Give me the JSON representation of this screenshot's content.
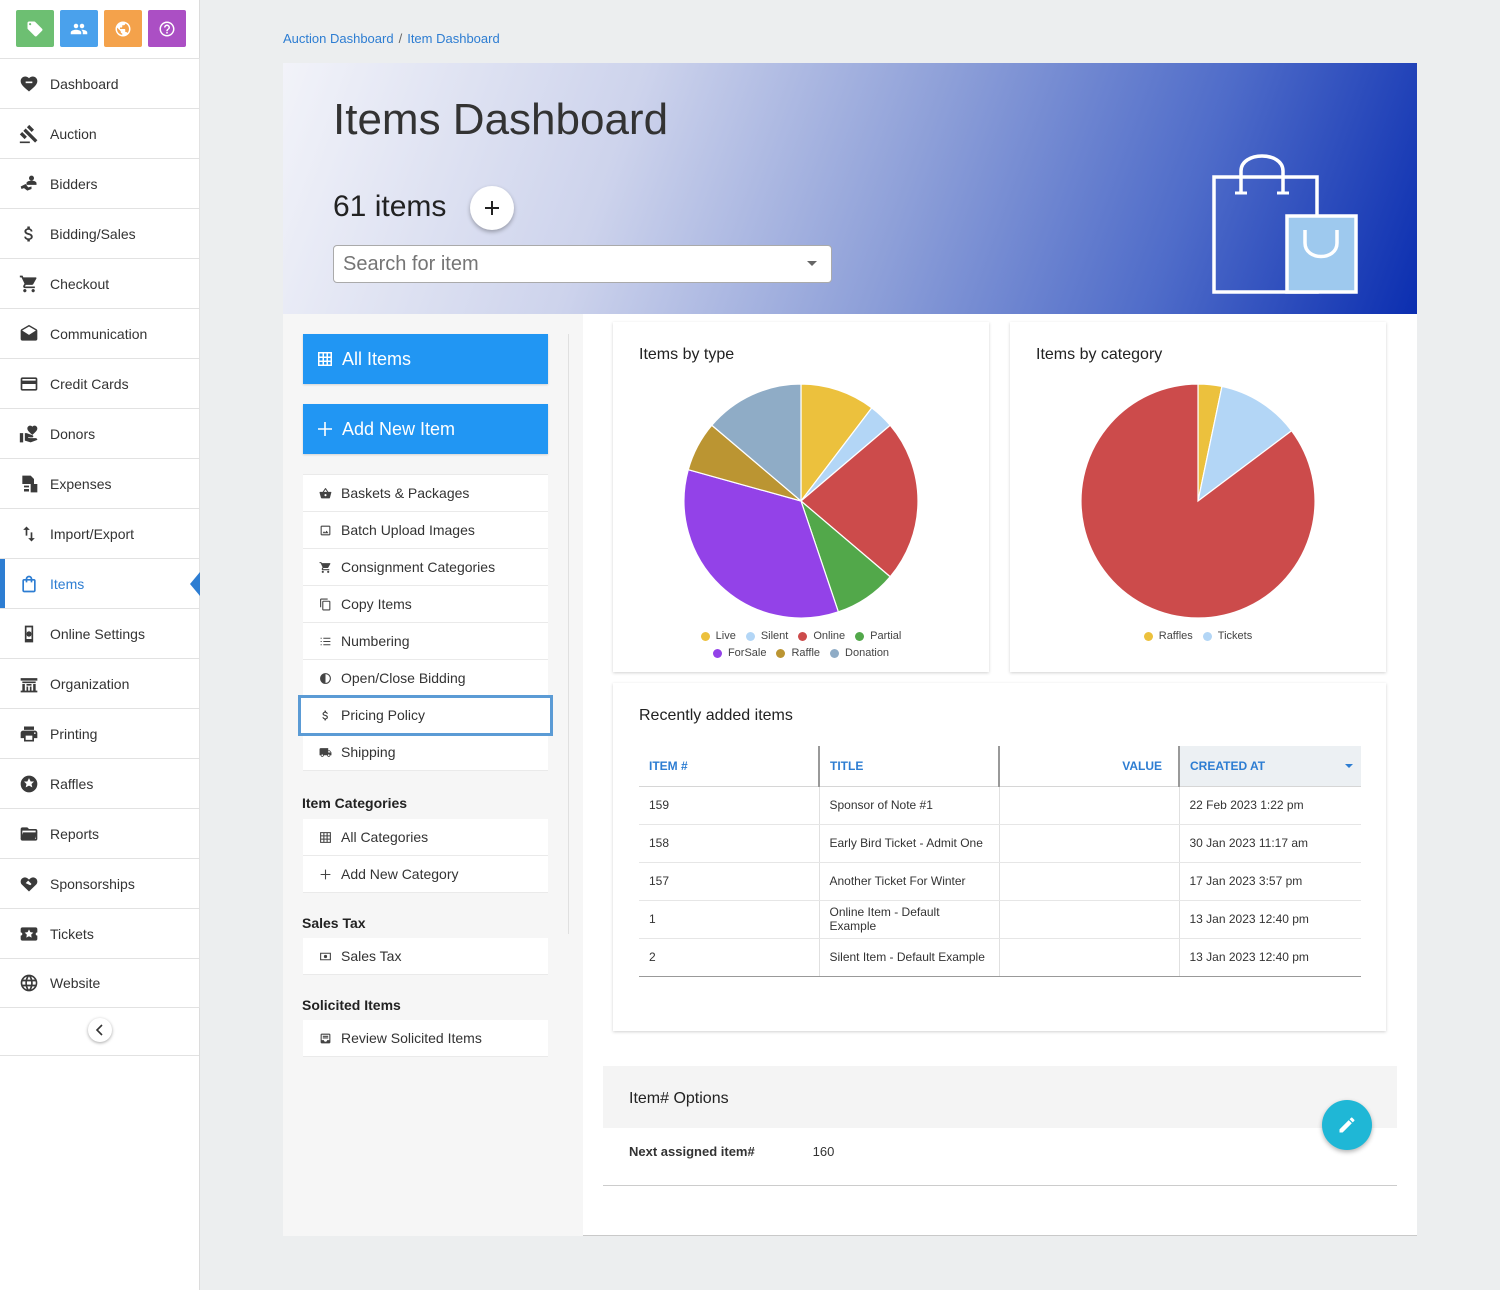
{
  "sidebar": {
    "top_icons": [
      {
        "icon": "tag-icon",
        "color": "#6dbf72"
      },
      {
        "icon": "people-icon",
        "color": "#4aa1ec"
      },
      {
        "icon": "globe-icon",
        "color": "#f4a24b"
      },
      {
        "icon": "help-icon",
        "color": "#ab4fc4"
      }
    ],
    "items": [
      {
        "label": "Dashboard",
        "icon": "dashboard-icon"
      },
      {
        "label": "Auction",
        "icon": "gavel-icon"
      },
      {
        "label": "Bidders",
        "icon": "bidders-icon"
      },
      {
        "label": "Bidding/Sales",
        "icon": "dollar-icon"
      },
      {
        "label": "Checkout",
        "icon": "cart-icon"
      },
      {
        "label": "Communication",
        "icon": "envelope-open-icon"
      },
      {
        "label": "Credit Cards",
        "icon": "credit-card-icon"
      },
      {
        "label": "Donors",
        "icon": "donor-hand-icon"
      },
      {
        "label": "Expenses",
        "icon": "expenses-icon"
      },
      {
        "label": "Import/Export",
        "icon": "import-export-icon"
      },
      {
        "label": "Items",
        "icon": "shopping-bag-icon",
        "active": true
      },
      {
        "label": "Online Settings",
        "icon": "online-settings-icon"
      },
      {
        "label": "Organization",
        "icon": "organization-icon"
      },
      {
        "label": "Printing",
        "icon": "printer-icon"
      },
      {
        "label": "Raffles",
        "icon": "raffle-icon"
      },
      {
        "label": "Reports",
        "icon": "folder-open-icon"
      },
      {
        "label": "Sponsorships",
        "icon": "handshake-heart-icon"
      },
      {
        "label": "Tickets",
        "icon": "ticket-star-icon"
      },
      {
        "label": "Website",
        "icon": "globe-outline-icon"
      }
    ],
    "accent": "#2d7dd2"
  },
  "breadcrumb": {
    "first": "Auction Dashboard",
    "separator": "/",
    "second": "Item Dashboard"
  },
  "hero": {
    "title": "Items Dashboard",
    "count": "61 items",
    "search_placeholder": "Search for item"
  },
  "subnav": {
    "all_items": "All Items",
    "add_new_item": "Add New Item",
    "items": [
      {
        "label": "Baskets & Packages",
        "icon": "basket-icon"
      },
      {
        "label": "Batch Upload Images",
        "icon": "image-icon"
      },
      {
        "label": "Consignment Categories",
        "icon": "cart-icon"
      },
      {
        "label": "Copy Items",
        "icon": "copy-icon"
      },
      {
        "label": "Numbering",
        "icon": "list-numbered-icon"
      },
      {
        "label": "Open/Close Bidding",
        "icon": "clock-half-icon"
      },
      {
        "label": "Pricing Policy",
        "icon": "dollar-icon"
      },
      {
        "label": "Shipping",
        "icon": "truck-icon"
      }
    ],
    "item_categories": {
      "heading": "Item Categories",
      "items": [
        {
          "label": "All Categories",
          "icon": "grid-icon"
        },
        {
          "label": "Add New Category",
          "icon": "plus-icon"
        }
      ]
    },
    "sales_tax": {
      "heading": "Sales Tax",
      "items": [
        {
          "label": "Sales Tax",
          "icon": "money-icon"
        }
      ]
    },
    "solicited": {
      "heading": "Solicited Items",
      "items": [
        {
          "label": "Review Solicited Items",
          "icon": "inbox-icon"
        }
      ]
    }
  },
  "chart_data": [
    {
      "type": "pie",
      "title": "Items by type",
      "categories": [
        "Live",
        "Silent",
        "Online",
        "Partial",
        "ForSale",
        "Raffle",
        "Donation"
      ],
      "values": [
        6,
        2,
        13,
        5,
        20,
        4,
        8
      ],
      "colors": [
        "#ecc13d",
        "#b3d6f6",
        "#cc4b4b",
        "#52a84a",
        "#9342e8",
        "#bb9532",
        "#8facc6"
      ],
      "legend_position": "bottom"
    },
    {
      "type": "pie",
      "title": "Items by category",
      "categories": [
        "Raffles",
        "Tickets"
      ],
      "values": [
        2,
        7
      ],
      "other_value": 52,
      "colors": [
        "#ecc13d",
        "#b3d6f6",
        "#cc4b4b"
      ],
      "legend_position": "bottom"
    }
  ],
  "recent": {
    "title": "Recently added items",
    "columns": [
      "ITEM #",
      "TITLE",
      "VALUE",
      "CREATED AT"
    ],
    "rows": [
      {
        "num": "159",
        "title": "Sponsor of Note #1",
        "value": "",
        "created": "22 Feb 2023 1:22 pm"
      },
      {
        "num": "158",
        "title": "Early Bird Ticket - Admit One",
        "value": "",
        "created": "30 Jan 2023 11:17 am"
      },
      {
        "num": "157",
        "title": "Another Ticket For Winter",
        "value": "",
        "created": "17 Jan 2023 3:57 pm"
      },
      {
        "num": "1",
        "title": "Online Item - Default Example",
        "value": "",
        "created": "13 Jan 2023 12:40 pm"
      },
      {
        "num": "2",
        "title": "Silent Item - Default Example",
        "value": "",
        "created": "13 Jan 2023 12:40 pm"
      }
    ]
  },
  "options": {
    "title": "Item# Options",
    "next_label": "Next assigned item#",
    "next_value": "160"
  }
}
